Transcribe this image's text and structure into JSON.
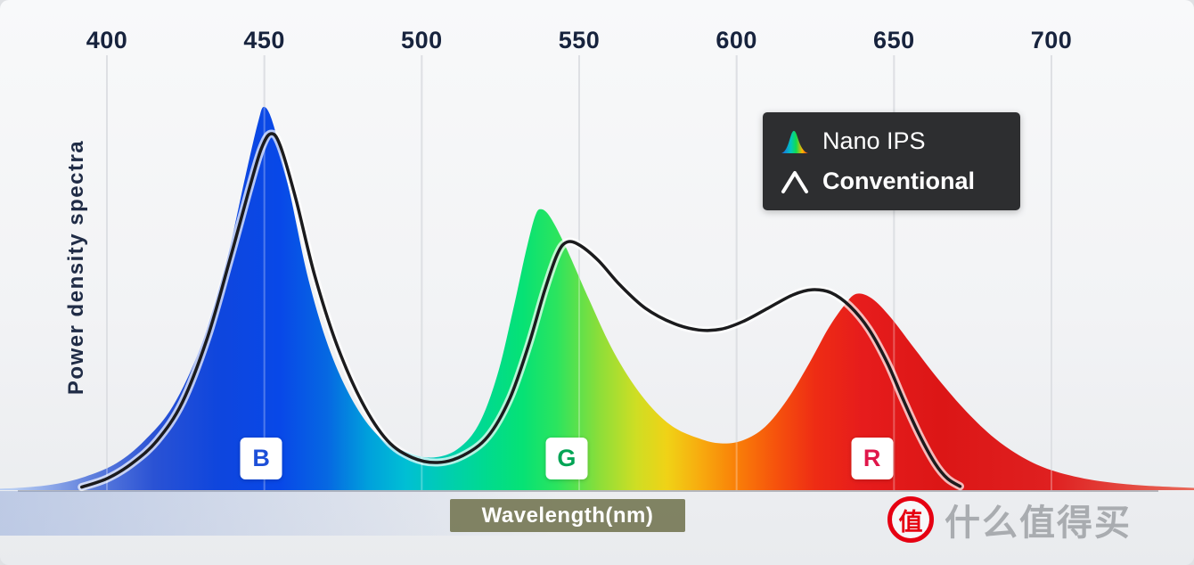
{
  "figure": {
    "y_axis_label": "Power density spectra",
    "x_axis_label": "Wavelength(nm)"
  },
  "legend": {
    "bg_color": "#2d2e30",
    "items": [
      {
        "label": "Nano IPS",
        "icon": "nano-ips-spectrum-icon"
      },
      {
        "label": "Conventional",
        "icon": "conventional-peak-icon"
      }
    ]
  },
  "band_labels": [
    {
      "label": "B",
      "color": "#1d4fd8",
      "wavelength": 449
    },
    {
      "label": "G",
      "color": "#00a455",
      "wavelength": 546
    },
    {
      "label": "R",
      "color": "#e0164a",
      "wavelength": 643
    }
  ],
  "watermark": {
    "logo_char": "值",
    "site_name": "什么值得买",
    "brand_red": "#e60012",
    "text_gray": "#a9acb0"
  },
  "chart_data": {
    "type": "area",
    "xlabel": "Wavelength(nm)",
    "ylabel": "Power density spectra",
    "x_ticks": [
      400,
      450,
      500,
      550,
      600,
      650,
      700
    ],
    "x_range": [
      400,
      700
    ],
    "y_range": [
      0,
      1
    ],
    "grid": "vertical-only",
    "legend_position": "top-right",
    "series": [
      {
        "name": "Nano IPS",
        "style": "filled-spectrum-area",
        "points": [
          [
            362,
            0.003
          ],
          [
            372,
            0.006
          ],
          [
            383,
            0.015
          ],
          [
            393,
            0.035
          ],
          [
            403,
            0.07
          ],
          [
            412,
            0.13
          ],
          [
            421,
            0.22
          ],
          [
            430,
            0.38
          ],
          [
            438,
            0.6
          ],
          [
            444,
            0.82
          ],
          [
            448,
            0.96
          ],
          [
            450,
            1.0
          ],
          [
            453,
            0.95
          ],
          [
            458,
            0.78
          ],
          [
            464,
            0.55
          ],
          [
            471,
            0.36
          ],
          [
            479,
            0.22
          ],
          [
            487,
            0.135
          ],
          [
            495,
            0.1
          ],
          [
            503,
            0.085
          ],
          [
            511,
            0.105
          ],
          [
            518,
            0.17
          ],
          [
            524,
            0.3
          ],
          [
            529,
            0.47
          ],
          [
            533,
            0.62
          ],
          [
            536,
            0.715
          ],
          [
            538,
            0.733
          ],
          [
            541,
            0.71
          ],
          [
            546,
            0.63
          ],
          [
            553,
            0.5
          ],
          [
            561,
            0.36
          ],
          [
            570,
            0.245
          ],
          [
            579,
            0.17
          ],
          [
            588,
            0.135
          ],
          [
            595,
            0.122
          ],
          [
            602,
            0.13
          ],
          [
            609,
            0.165
          ],
          [
            616,
            0.235
          ],
          [
            623,
            0.33
          ],
          [
            629,
            0.42
          ],
          [
            634,
            0.48
          ],
          [
            638,
            0.512
          ],
          [
            643,
            0.5
          ],
          [
            649,
            0.45
          ],
          [
            656,
            0.375
          ],
          [
            664,
            0.29
          ],
          [
            673,
            0.205
          ],
          [
            682,
            0.135
          ],
          [
            691,
            0.085
          ],
          [
            700,
            0.052
          ],
          [
            712,
            0.028
          ],
          [
            726,
            0.014
          ],
          [
            742,
            0.007
          ],
          [
            752,
            0.004
          ]
        ]
      },
      {
        "name": "Conventional",
        "style": "line",
        "color": "#1b1b1d",
        "points": [
          [
            392,
            0.008
          ],
          [
            400,
            0.03
          ],
          [
            408,
            0.07
          ],
          [
            416,
            0.13
          ],
          [
            424,
            0.23
          ],
          [
            432,
            0.4
          ],
          [
            439,
            0.6
          ],
          [
            445,
            0.78
          ],
          [
            449,
            0.89
          ],
          [
            452,
            0.93
          ],
          [
            455,
            0.9
          ],
          [
            460,
            0.76
          ],
          [
            466,
            0.56
          ],
          [
            473,
            0.38
          ],
          [
            481,
            0.23
          ],
          [
            489,
            0.13
          ],
          [
            497,
            0.085
          ],
          [
            505,
            0.072
          ],
          [
            513,
            0.09
          ],
          [
            521,
            0.14
          ],
          [
            528,
            0.24
          ],
          [
            534,
            0.38
          ],
          [
            539,
            0.52
          ],
          [
            543,
            0.615
          ],
          [
            546,
            0.647
          ],
          [
            550,
            0.64
          ],
          [
            556,
            0.6
          ],
          [
            563,
            0.535
          ],
          [
            571,
            0.475
          ],
          [
            580,
            0.435
          ],
          [
            588,
            0.418
          ],
          [
            595,
            0.42
          ],
          [
            602,
            0.44
          ],
          [
            610,
            0.475
          ],
          [
            618,
            0.51
          ],
          [
            624,
            0.523
          ],
          [
            630,
            0.515
          ],
          [
            636,
            0.48
          ],
          [
            642,
            0.42
          ],
          [
            648,
            0.33
          ],
          [
            653,
            0.235
          ],
          [
            658,
            0.145
          ],
          [
            663,
            0.07
          ],
          [
            667,
            0.03
          ],
          [
            671,
            0.01
          ]
        ]
      }
    ],
    "spectrum_gradient": [
      {
        "wavelength": 370,
        "color": "#b8cdf2"
      },
      {
        "wavelength": 395,
        "color": "#5f7fdd"
      },
      {
        "wavelength": 415,
        "color": "#2a52d4"
      },
      {
        "wavelength": 435,
        "color": "#0f46dd"
      },
      {
        "wavelength": 455,
        "color": "#0848e8"
      },
      {
        "wavelength": 470,
        "color": "#0668e2"
      },
      {
        "wavelength": 483,
        "color": "#00a0dc"
      },
      {
        "wavelength": 495,
        "color": "#00bfd4"
      },
      {
        "wavelength": 508,
        "color": "#00ceb0"
      },
      {
        "wavelength": 520,
        "color": "#00da90"
      },
      {
        "wavelength": 532,
        "color": "#06e275"
      },
      {
        "wavelength": 543,
        "color": "#2ce45e"
      },
      {
        "wavelength": 556,
        "color": "#8ade3a"
      },
      {
        "wavelength": 568,
        "color": "#cede24"
      },
      {
        "wavelength": 578,
        "color": "#f0d216"
      },
      {
        "wavelength": 589,
        "color": "#f8a90e"
      },
      {
        "wavelength": 600,
        "color": "#f97f08"
      },
      {
        "wavelength": 612,
        "color": "#f6540c"
      },
      {
        "wavelength": 625,
        "color": "#ee2c14"
      },
      {
        "wavelength": 640,
        "color": "#e61c1c"
      },
      {
        "wavelength": 665,
        "color": "#dc1616"
      },
      {
        "wavelength": 700,
        "color": "#df2020"
      },
      {
        "wavelength": 748,
        "color": "#e86a5a"
      }
    ]
  }
}
